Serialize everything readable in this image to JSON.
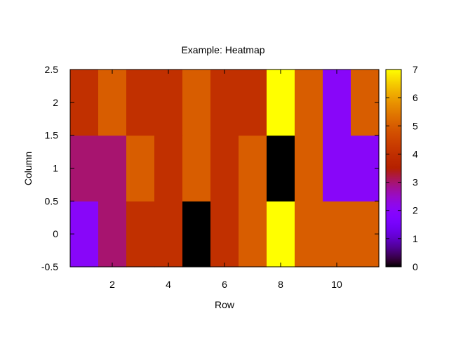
{
  "chart_data": {
    "type": "heatmap",
    "title": "Example: Heatmap",
    "xlabel": "Row",
    "ylabel": "Column",
    "x": [
      1,
      2,
      3,
      4,
      5,
      6,
      7,
      8,
      9,
      10,
      11
    ],
    "y": [
      0,
      1,
      2
    ],
    "xlim": [
      0.5,
      11.5
    ],
    "ylim": [
      -0.5,
      2.5
    ],
    "x_ticks": [
      "2",
      "4",
      "6",
      "8",
      "10"
    ],
    "y_ticks": [
      "-0.5",
      "0",
      "0.5",
      "1",
      "1.5",
      "2",
      "2.5"
    ],
    "values": [
      [
        2,
        3,
        4,
        4,
        0,
        4,
        5,
        7,
        5,
        5,
        5
      ],
      [
        3,
        3,
        5,
        4,
        5,
        4,
        5,
        0,
        5,
        2,
        2
      ],
      [
        4,
        5,
        4,
        4,
        5,
        4,
        4,
        7,
        5,
        2,
        5
      ]
    ],
    "colorbar": {
      "range": [
        0,
        7
      ],
      "ticks": [
        "0",
        "1",
        "2",
        "3",
        "4",
        "5",
        "6",
        "7"
      ],
      "colormap": "gnuplot"
    },
    "grid": false,
    "legend": "none"
  }
}
